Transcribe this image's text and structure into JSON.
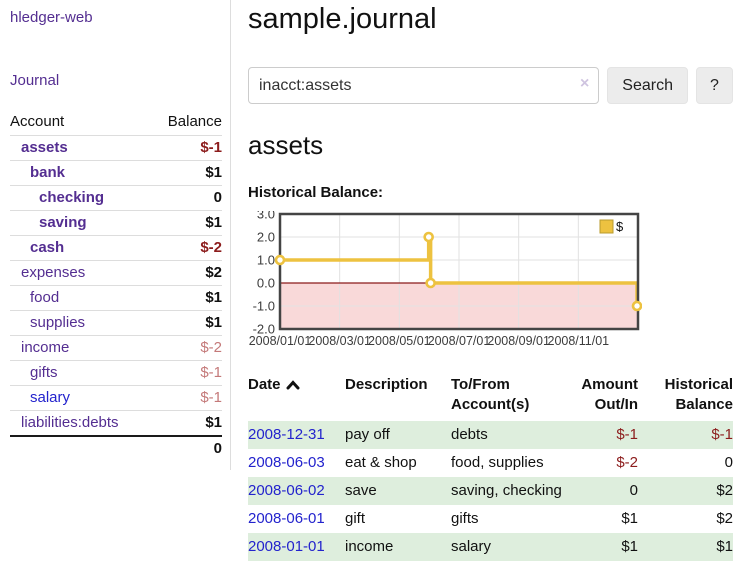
{
  "app": {
    "brand": "hledger-web",
    "nav_journal": "Journal"
  },
  "header": {
    "title": "sample.journal"
  },
  "search": {
    "value": "inacct:assets",
    "clear_icon": "×",
    "search_button": "Search",
    "help_button": "?"
  },
  "sidebar": {
    "header": {
      "account": "Account",
      "balance": "Balance"
    },
    "accounts": [
      {
        "name": "assets",
        "depth": 1,
        "bold": true,
        "balance": "$-1",
        "balance_class": "neg"
      },
      {
        "name": "bank",
        "depth": 2,
        "bold": true,
        "balance": "$1",
        "balance_class": ""
      },
      {
        "name": "checking",
        "depth": 3,
        "bold": true,
        "balance": "0",
        "balance_class": ""
      },
      {
        "name": "saving",
        "depth": 3,
        "bold": true,
        "balance": "$1",
        "balance_class": ""
      },
      {
        "name": "cash",
        "depth": 2,
        "bold": true,
        "balance": "$-2",
        "balance_class": "neg"
      },
      {
        "name": "expenses",
        "depth": 1,
        "bold": false,
        "balance": "$2",
        "balance_class": ""
      },
      {
        "name": "food",
        "depth": 2,
        "bold": false,
        "balance": "$1",
        "balance_class": ""
      },
      {
        "name": "supplies",
        "depth": 2,
        "bold": false,
        "balance": "$1",
        "balance_class": ""
      },
      {
        "name": "income",
        "depth": 1,
        "bold": false,
        "balance": "$-2",
        "balance_class": "neg-muted"
      },
      {
        "name": "gifts",
        "depth": 2,
        "bold": false,
        "balance": "$-1",
        "balance_class": "neg-muted"
      },
      {
        "name": "salary",
        "depth": 2,
        "bold": false,
        "balance": "$-1",
        "balance_class": "neg-muted",
        "link_blue": true
      },
      {
        "name": "liabilities:debts",
        "depth": 1,
        "bold": false,
        "balance": "$1",
        "balance_class": ""
      }
    ],
    "total": "0"
  },
  "account_page": {
    "title": "assets",
    "chart_label": "Historical Balance:"
  },
  "chart_data": {
    "type": "line",
    "title": "Historical Balance",
    "step": true,
    "series": [
      {
        "name": "$",
        "color": "#edc240",
        "points": [
          [
            "2008-01-01",
            1
          ],
          [
            "2008-06-01",
            2
          ],
          [
            "2008-06-03",
            0
          ],
          [
            "2008-12-31",
            -1
          ]
        ]
      }
    ],
    "ylim": [
      -2,
      3
    ],
    "yticks": [
      3,
      2,
      1,
      0,
      -1,
      -2
    ],
    "xrange": [
      "2008-01-01",
      "2009-01-01"
    ],
    "xticks": [
      "2008/01/01",
      "2008/03/01",
      "2008/05/01",
      "2008/07/01",
      "2008/09/01",
      "2008/11/01"
    ],
    "legend_position": "top-right",
    "legend_label": "$",
    "grid": true,
    "negative_region_fill": "#f9d9d9",
    "zero_line_color": "#8b1a1a",
    "border_color": "#444444",
    "gridline_color": "#e2e2e2"
  },
  "register": {
    "columns": [
      {
        "label": "Date",
        "sort": "ascending"
      },
      {
        "label": "Description"
      },
      {
        "label": "To/From Account(s)"
      },
      {
        "label": "Amount Out/In"
      },
      {
        "label": "Historical Balance"
      }
    ],
    "rows": [
      {
        "date": "2008-12-31",
        "description": "pay off",
        "accounts": "debts",
        "amount": "$-1",
        "amount_negative": true,
        "balance": "$-1",
        "balance_negative": true
      },
      {
        "date": "2008-06-03",
        "description": "eat & shop",
        "accounts": "food, supplies",
        "amount": "$-2",
        "amount_negative": true,
        "balance": "0",
        "balance_negative": false
      },
      {
        "date": "2008-06-02",
        "description": "save",
        "accounts": "saving, checking",
        "amount": "0",
        "amount_negative": false,
        "balance": "$2",
        "balance_negative": false
      },
      {
        "date": "2008-06-01",
        "description": "gift",
        "accounts": "gifts",
        "amount": "$1",
        "amount_negative": false,
        "balance": "$2",
        "balance_negative": false
      },
      {
        "date": "2008-01-01",
        "description": "income",
        "accounts": "salary",
        "amount": "$1",
        "amount_negative": false,
        "balance": "$1",
        "balance_negative": false
      }
    ]
  },
  "colors": {
    "link_purple": "#542e91",
    "link_blue": "#2323cd",
    "negative_strong": "#8c1c1c",
    "negative_muted": "#c47979",
    "row_stripe_green": "#deeedd"
  }
}
